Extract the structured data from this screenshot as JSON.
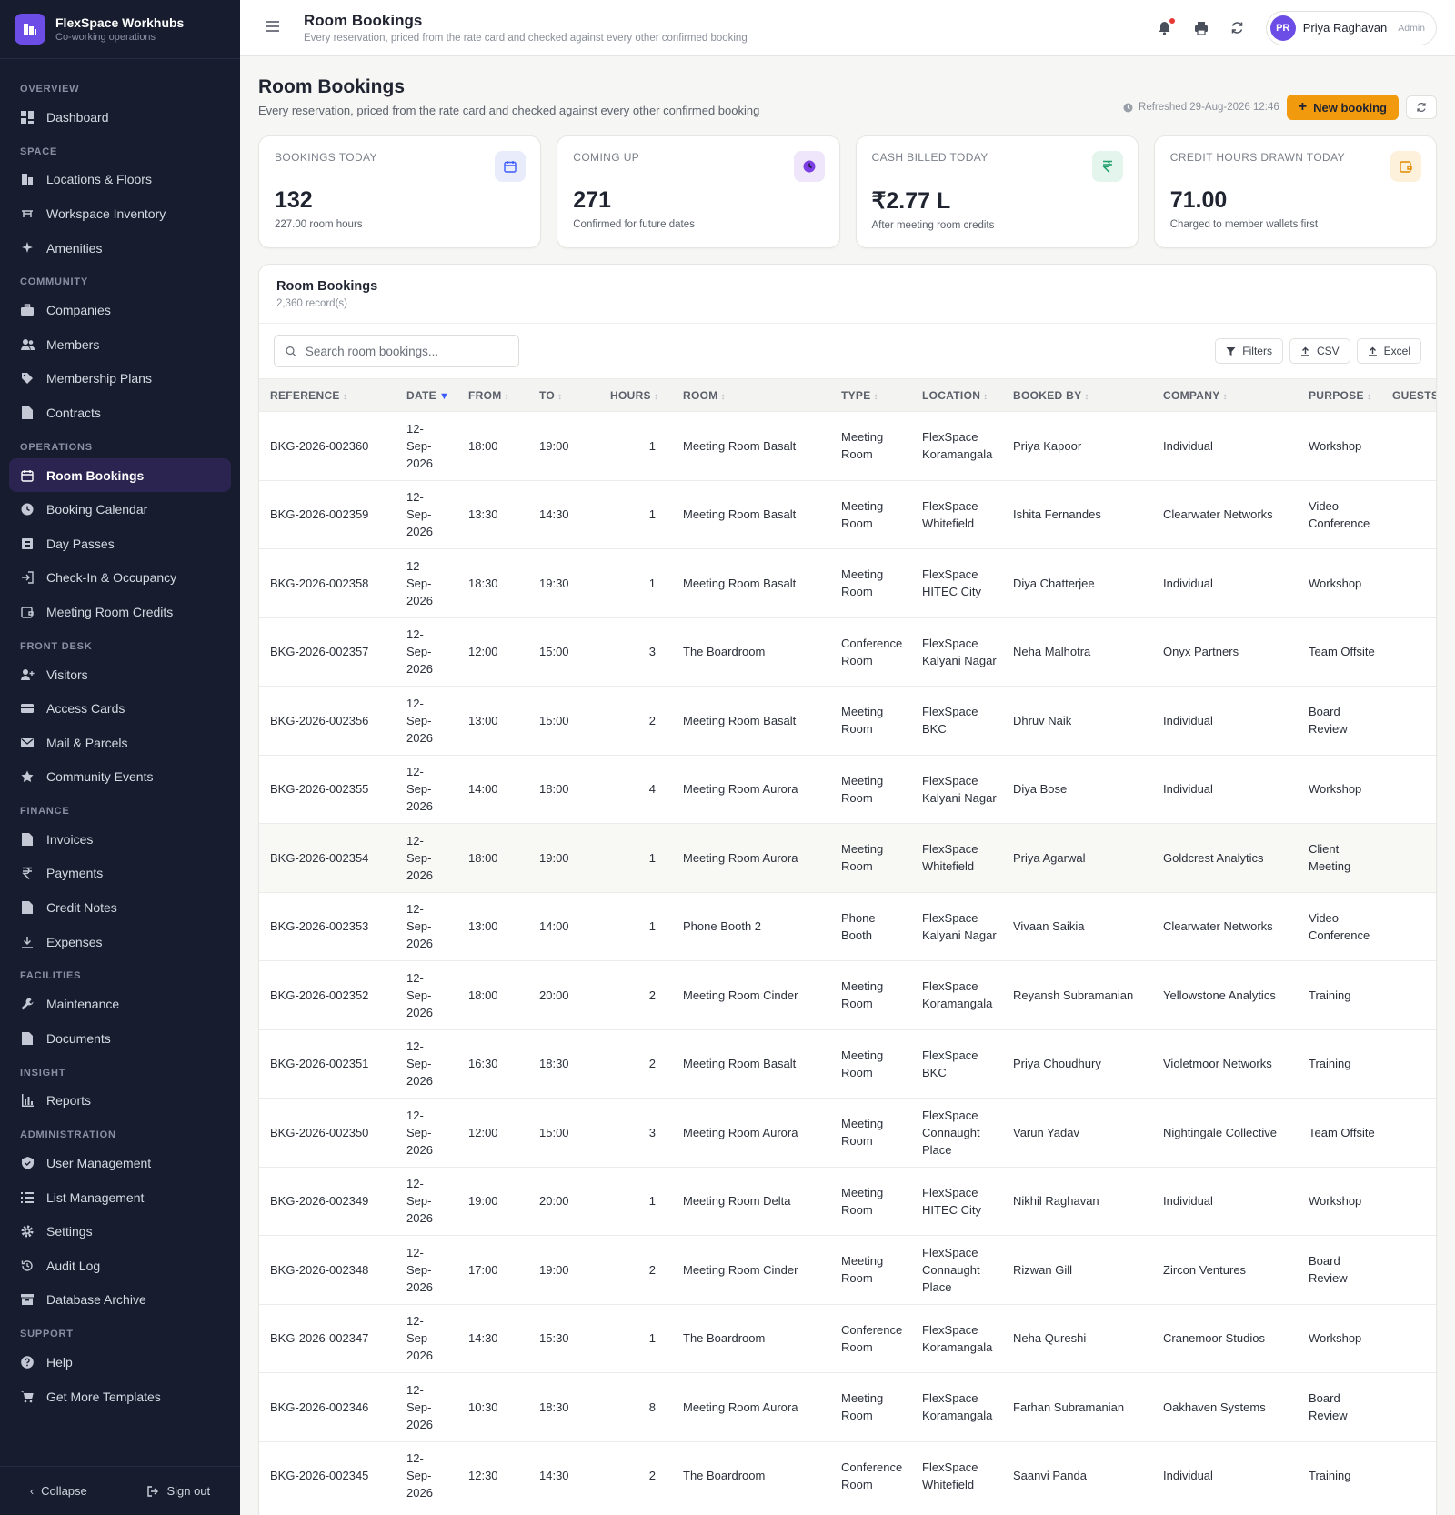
{
  "brand": {
    "name": "FlexSpace Workhubs",
    "subtitle": "Co-working operations"
  },
  "nav": [
    {
      "section": "OVERVIEW",
      "items": [
        {
          "label": "Dashboard",
          "icon": "grid-icon"
        }
      ]
    },
    {
      "section": "SPACE",
      "items": [
        {
          "label": "Locations & Floors",
          "icon": "building-icon"
        },
        {
          "label": "Workspace Inventory",
          "icon": "desk-icon"
        },
        {
          "label": "Amenities",
          "icon": "sparkle-icon"
        }
      ]
    },
    {
      "section": "COMMUNITY",
      "items": [
        {
          "label": "Companies",
          "icon": "briefcase-icon"
        },
        {
          "label": "Members",
          "icon": "users-icon"
        },
        {
          "label": "Membership Plans",
          "icon": "tag-icon"
        },
        {
          "label": "Contracts",
          "icon": "file-icon"
        }
      ]
    },
    {
      "section": "OPERATIONS",
      "items": [
        {
          "label": "Room Bookings",
          "icon": "calendar-icon",
          "active": true
        },
        {
          "label": "Booking Calendar",
          "icon": "clock-icon"
        },
        {
          "label": "Day Passes",
          "icon": "ticket-icon"
        },
        {
          "label": "Check-In & Occupancy",
          "icon": "login-icon"
        },
        {
          "label": "Meeting Room Credits",
          "icon": "wallet-icon"
        }
      ]
    },
    {
      "section": "FRONT DESK",
      "items": [
        {
          "label": "Visitors",
          "icon": "user-plus-icon"
        },
        {
          "label": "Access Cards",
          "icon": "card-icon"
        },
        {
          "label": "Mail & Parcels",
          "icon": "mail-icon"
        },
        {
          "label": "Community Events",
          "icon": "star-icon"
        }
      ]
    },
    {
      "section": "FINANCE",
      "items": [
        {
          "label": "Invoices",
          "icon": "invoice-icon"
        },
        {
          "label": "Payments",
          "icon": "rupee-icon"
        },
        {
          "label": "Credit Notes",
          "icon": "note-icon"
        },
        {
          "label": "Expenses",
          "icon": "download-icon"
        }
      ]
    },
    {
      "section": "FACILITIES",
      "items": [
        {
          "label": "Maintenance",
          "icon": "wrench-icon"
        },
        {
          "label": "Documents",
          "icon": "document-icon"
        }
      ]
    },
    {
      "section": "INSIGHT",
      "items": [
        {
          "label": "Reports",
          "icon": "bar-chart-icon"
        }
      ]
    },
    {
      "section": "ADMINISTRATION",
      "items": [
        {
          "label": "User Management",
          "icon": "shield-icon"
        },
        {
          "label": "List Management",
          "icon": "list-icon"
        },
        {
          "label": "Settings",
          "icon": "gear-icon"
        },
        {
          "label": "Audit Log",
          "icon": "history-icon"
        },
        {
          "label": "Database Archive",
          "icon": "archive-icon"
        }
      ]
    },
    {
      "section": "SUPPORT",
      "items": [
        {
          "label": "Help",
          "icon": "help-icon"
        },
        {
          "label": "Get More Templates",
          "icon": "cart-icon"
        }
      ]
    }
  ],
  "sidebar_footer": {
    "collapse": "Collapse",
    "signout": "Sign out"
  },
  "topbar": {
    "title": "Room Bookings",
    "subtitle": "Every reservation, priced from the rate card and checked against every other confirmed booking",
    "user": {
      "initials": "PR",
      "name": "Priya Raghavan",
      "role": "Admin"
    }
  },
  "page": {
    "title": "Room Bookings",
    "subtitle": "Every reservation, priced from the rate card and checked against every other confirmed booking",
    "refreshed": "Refreshed 29-Aug-2026 12:46",
    "new_button": "New booking"
  },
  "stats": [
    {
      "label": "BOOKINGS TODAY",
      "value": "132",
      "note": "227.00 room hours",
      "icon": "calendar-icon",
      "color": "#3d5afe",
      "bg": "#e8ecfb"
    },
    {
      "label": "COMING UP",
      "value": "271",
      "note": "Confirmed for future dates",
      "icon": "clock-icon",
      "color": "#7b3fe4",
      "bg": "#efe6fb"
    },
    {
      "label": "CASH BILLED TODAY",
      "value": "₹2.77 L",
      "note": "After meeting room credits",
      "icon": "rupee-icon",
      "color": "#1f9d6a",
      "bg": "#e3f5ec"
    },
    {
      "label": "CREDIT HOURS DRAWN TODAY",
      "value": "71.00",
      "note": "Charged to member wallets first",
      "icon": "wallet-icon",
      "color": "#e08a00",
      "bg": "#fdf1dc"
    }
  ],
  "table_card": {
    "title": "Room Bookings",
    "count": "2,360 record(s)",
    "search_placeholder": "Search room bookings...",
    "buttons": {
      "filters": "Filters",
      "csv": "CSV",
      "excel": "Excel"
    },
    "columns": [
      "REFERENCE",
      "DATE",
      "FROM",
      "TO",
      "HOURS",
      "ROOM",
      "TYPE",
      "LOCATION",
      "BOOKED BY",
      "COMPANY",
      "PURPOSE",
      "GUESTS"
    ],
    "rows": [
      {
        "ref": "BKG-2026-002360",
        "date": "12-Sep-2026",
        "from": "18:00",
        "to": "19:00",
        "hours": "1",
        "room": "Meeting Room Basalt",
        "type": "Meeting Room",
        "location": "FlexSpace Koramangala",
        "booked_by": "Priya Kapoor",
        "company": "Individual",
        "purpose": "Workshop"
      },
      {
        "ref": "BKG-2026-002359",
        "date": "12-Sep-2026",
        "from": "13:30",
        "to": "14:30",
        "hours": "1",
        "room": "Meeting Room Basalt",
        "type": "Meeting Room",
        "location": "FlexSpace Whitefield",
        "booked_by": "Ishita Fernandes",
        "company": "Clearwater Networks",
        "purpose": "Video Conference"
      },
      {
        "ref": "BKG-2026-002358",
        "date": "12-Sep-2026",
        "from": "18:30",
        "to": "19:30",
        "hours": "1",
        "room": "Meeting Room Basalt",
        "type": "Meeting Room",
        "location": "FlexSpace HITEC City",
        "booked_by": "Diya Chatterjee",
        "company": "Individual",
        "purpose": "Workshop"
      },
      {
        "ref": "BKG-2026-002357",
        "date": "12-Sep-2026",
        "from": "12:00",
        "to": "15:00",
        "hours": "3",
        "room": "The Boardroom",
        "type": "Conference Room",
        "location": "FlexSpace Kalyani Nagar",
        "booked_by": "Neha Malhotra",
        "company": "Onyx Partners",
        "purpose": "Team Offsite"
      },
      {
        "ref": "BKG-2026-002356",
        "date": "12-Sep-2026",
        "from": "13:00",
        "to": "15:00",
        "hours": "2",
        "room": "Meeting Room Basalt",
        "type": "Meeting Room",
        "location": "FlexSpace BKC",
        "booked_by": "Dhruv Naik",
        "company": "Individual",
        "purpose": "Board Review"
      },
      {
        "ref": "BKG-2026-002355",
        "date": "12-Sep-2026",
        "from": "14:00",
        "to": "18:00",
        "hours": "4",
        "room": "Meeting Room Aurora",
        "type": "Meeting Room",
        "location": "FlexSpace Kalyani Nagar",
        "booked_by": "Diya Bose",
        "company": "Individual",
        "purpose": "Workshop"
      },
      {
        "ref": "BKG-2026-002354",
        "date": "12-Sep-2026",
        "from": "18:00",
        "to": "19:00",
        "hours": "1",
        "room": "Meeting Room Aurora",
        "type": "Meeting Room",
        "location": "FlexSpace Whitefield",
        "booked_by": "Priya Agarwal",
        "company": "Goldcrest Analytics",
        "purpose": "Client Meeting",
        "highlight": true
      },
      {
        "ref": "BKG-2026-002353",
        "date": "12-Sep-2026",
        "from": "13:00",
        "to": "14:00",
        "hours": "1",
        "room": "Phone Booth 2",
        "type": "Phone Booth",
        "location": "FlexSpace Kalyani Nagar",
        "booked_by": "Vivaan Saikia",
        "company": "Clearwater Networks",
        "purpose": "Video Conference"
      },
      {
        "ref": "BKG-2026-002352",
        "date": "12-Sep-2026",
        "from": "18:00",
        "to": "20:00",
        "hours": "2",
        "room": "Meeting Room Cinder",
        "type": "Meeting Room",
        "location": "FlexSpace Koramangala",
        "booked_by": "Reyansh Subramanian",
        "company": "Yellowstone Analytics",
        "purpose": "Training"
      },
      {
        "ref": "BKG-2026-002351",
        "date": "12-Sep-2026",
        "from": "16:30",
        "to": "18:30",
        "hours": "2",
        "room": "Meeting Room Basalt",
        "type": "Meeting Room",
        "location": "FlexSpace BKC",
        "booked_by": "Priya Choudhury",
        "company": "Violetmoor Networks",
        "purpose": "Training"
      },
      {
        "ref": "BKG-2026-002350",
        "date": "12-Sep-2026",
        "from": "12:00",
        "to": "15:00",
        "hours": "3",
        "room": "Meeting Room Aurora",
        "type": "Meeting Room",
        "location": "FlexSpace Connaught Place",
        "booked_by": "Varun Yadav",
        "company": "Nightingale Collective",
        "purpose": "Team Offsite"
      },
      {
        "ref": "BKG-2026-002349",
        "date": "12-Sep-2026",
        "from": "19:00",
        "to": "20:00",
        "hours": "1",
        "room": "Meeting Room Delta",
        "type": "Meeting Room",
        "location": "FlexSpace HITEC City",
        "booked_by": "Nikhil Raghavan",
        "company": "Individual",
        "purpose": "Workshop"
      },
      {
        "ref": "BKG-2026-002348",
        "date": "12-Sep-2026",
        "from": "17:00",
        "to": "19:00",
        "hours": "2",
        "room": "Meeting Room Cinder",
        "type": "Meeting Room",
        "location": "FlexSpace Connaught Place",
        "booked_by": "Rizwan Gill",
        "company": "Zircon Ventures",
        "purpose": "Board Review"
      },
      {
        "ref": "BKG-2026-002347",
        "date": "12-Sep-2026",
        "from": "14:30",
        "to": "15:30",
        "hours": "1",
        "room": "The Boardroom",
        "type": "Conference Room",
        "location": "FlexSpace Koramangala",
        "booked_by": "Neha Qureshi",
        "company": "Cranemoor Studios",
        "purpose": "Workshop"
      },
      {
        "ref": "BKG-2026-002346",
        "date": "12-Sep-2026",
        "from": "10:30",
        "to": "18:30",
        "hours": "8",
        "room": "Meeting Room Aurora",
        "type": "Meeting Room",
        "location": "FlexSpace Koramangala",
        "booked_by": "Farhan Subramanian",
        "company": "Oakhaven Systems",
        "purpose": "Board Review"
      },
      {
        "ref": "BKG-2026-002345",
        "date": "12-Sep-2026",
        "from": "12:30",
        "to": "14:30",
        "hours": "2",
        "room": "The Boardroom",
        "type": "Conference Room",
        "location": "FlexSpace Whitefield",
        "booked_by": "Saanvi Panda",
        "company": "Individual",
        "purpose": "Training"
      }
    ]
  }
}
